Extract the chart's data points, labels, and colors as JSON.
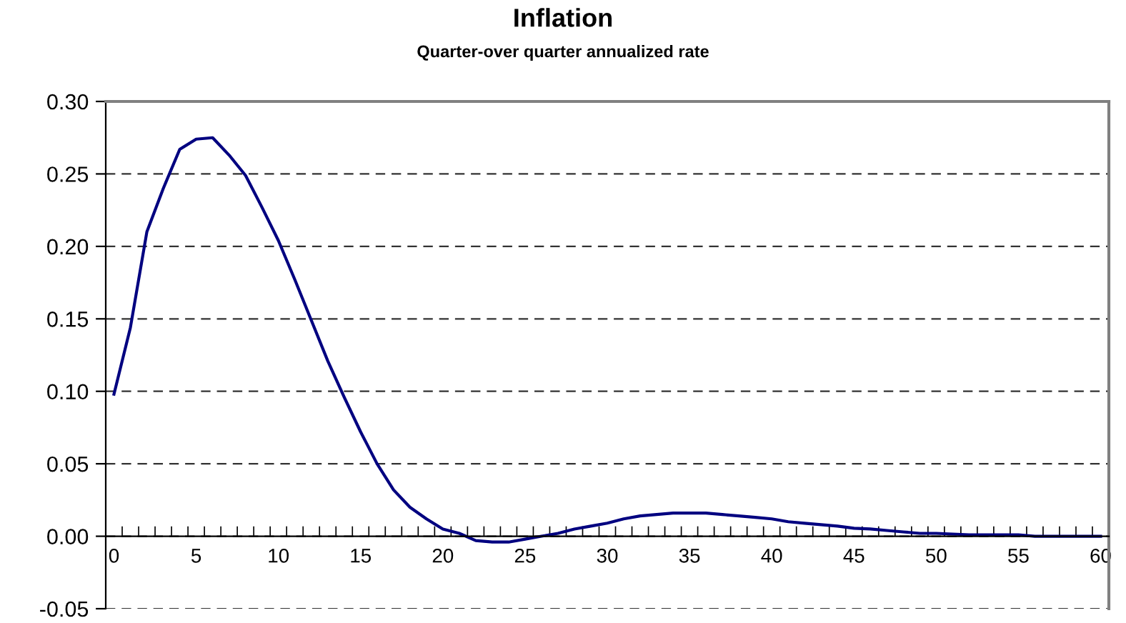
{
  "chart_data": {
    "type": "line",
    "title": "Inflation",
    "subtitle": "Quarter-over quarter annualized rate",
    "categories": [
      "0",
      null,
      null,
      null,
      null,
      "5",
      null,
      null,
      null,
      null,
      "10",
      null,
      null,
      null,
      null,
      "15",
      null,
      null,
      null,
      null,
      "20",
      null,
      null,
      null,
      null,
      "25",
      null,
      null,
      null,
      null,
      "30",
      null,
      null,
      null,
      null,
      "35",
      null,
      null,
      null,
      null,
      "40",
      null,
      null,
      null,
      null,
      "45",
      null,
      null,
      null,
      null,
      "50",
      null,
      null,
      null,
      null,
      "55",
      null,
      null,
      null,
      null,
      "60"
    ],
    "series": [
      {
        "color": "#000080",
        "values": [
          0.098,
          0.144,
          0.21,
          0.24,
          0.267,
          0.274,
          0.275,
          0.263,
          0.249,
          0.227,
          0.204,
          0.177,
          0.149,
          0.121,
          0.096,
          0.072,
          0.05,
          0.032,
          0.02,
          0.012,
          0.005,
          0.002,
          -0.003,
          -0.004,
          -0.004,
          -0.002,
          0.0,
          0.002,
          0.005,
          0.007,
          0.009,
          0.012,
          0.014,
          0.015,
          0.016,
          0.016,
          0.016,
          0.015,
          0.014,
          0.013,
          0.012,
          0.01,
          0.009,
          0.008,
          0.007,
          0.0055,
          0.005,
          0.004,
          0.003,
          0.002,
          0.002,
          0.0015,
          0.001,
          0.001,
          0.001,
          0.001,
          0.0,
          0.0,
          0.0,
          0.0,
          0.0
        ]
      }
    ],
    "ylim": [
      -0.05,
      0.3
    ],
    "yticks": [
      {
        "value": -0.05,
        "label": "-0.05"
      },
      {
        "value": 0,
        "label": "0.00"
      },
      {
        "value": 0.05,
        "label": "0.05"
      },
      {
        "value": 0.1,
        "label": "0.10"
      },
      {
        "value": 0.15,
        "label": "0.15"
      },
      {
        "value": 0.2,
        "label": "0.20"
      },
      {
        "value": 0.25,
        "label": "0.25"
      },
      {
        "value": 0.3,
        "label": "0.30"
      }
    ],
    "grid": "y",
    "marker": "none",
    "line_style": "solid"
  }
}
